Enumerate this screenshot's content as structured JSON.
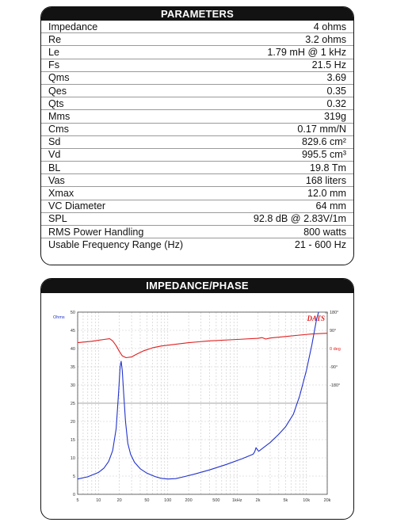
{
  "parameters": {
    "title": "PARAMETERS",
    "rows": [
      {
        "label": "Impedance",
        "value": "4 ohms"
      },
      {
        "label": "Re",
        "value": "3.2 ohms"
      },
      {
        "label": "Le",
        "value": "1.79 mH @ 1 kHz"
      },
      {
        "label": "Fs",
        "value": "21.5 Hz"
      },
      {
        "label": "Qms",
        "value": "3.69"
      },
      {
        "label": "Qes",
        "value": "0.35"
      },
      {
        "label": "Qts",
        "value": "0.32"
      },
      {
        "label": "Mms",
        "value": "319g"
      },
      {
        "label": "Cms",
        "value": "0.17 mm/N"
      },
      {
        "label": "Sd",
        "value": "829.6 cm²"
      },
      {
        "label": "Vd",
        "value": "995.5 cm³"
      },
      {
        "label": "BL",
        "value": "19.8 Tm"
      },
      {
        "label": "Vas",
        "value": "168 liters"
      },
      {
        "label": "Xmax",
        "value": "12.0 mm"
      },
      {
        "label": "VC Diameter",
        "value": "64 mm"
      },
      {
        "label": "SPL",
        "value": "92.8 dB @ 2.83V/1m"
      },
      {
        "label": "RMS Power Handling",
        "value": "800 watts"
      },
      {
        "label": "Usable Frequency Range (Hz)",
        "value": "21 - 600 Hz"
      }
    ]
  },
  "impedance_panel": {
    "title": "IMPEDANCE/PHASE",
    "watermark": "DATS",
    "watermark_sup": "V3",
    "ohms_label": "Ohms",
    "zero_deg_label": "0 deg"
  },
  "chart_data": {
    "type": "line",
    "x_scale": "log",
    "xlim": [
      5,
      20000
    ],
    "x_ticks": [
      "5",
      "10",
      "20",
      "50",
      "100",
      "200",
      "500",
      "1kHz",
      "2k",
      "5k",
      "10k",
      "20k"
    ],
    "x_tick_values": [
      5,
      10,
      20,
      50,
      100,
      200,
      500,
      1000,
      2000,
      5000,
      10000,
      20000
    ],
    "ylim": [
      0,
      50
    ],
    "y_ticks": [
      0,
      5,
      10,
      15,
      20,
      25,
      30,
      35,
      40,
      45,
      50
    ],
    "right_ticks": [
      {
        "label": "180°",
        "ohms": 50
      },
      {
        "label": "90°",
        "ohms": 45
      },
      {
        "label": "-90°",
        "ohms": 35
      },
      {
        "label": "-180°",
        "ohms": 30
      }
    ],
    "colors": {
      "impedance": "#2233cc",
      "phase": "#e02020"
    },
    "series": [
      {
        "kind": "impedance",
        "points": [
          [
            5,
            4.2
          ],
          [
            7,
            4.8
          ],
          [
            10,
            6
          ],
          [
            12,
            7.2
          ],
          [
            14,
            9
          ],
          [
            16,
            12
          ],
          [
            18,
            18
          ],
          [
            19.5,
            28
          ],
          [
            20.5,
            35
          ],
          [
            21.2,
            36.5
          ],
          [
            22,
            34
          ],
          [
            23,
            28
          ],
          [
            24.5,
            20
          ],
          [
            26.5,
            14
          ],
          [
            29,
            11
          ],
          [
            33,
            8.8
          ],
          [
            40,
            7
          ],
          [
            50,
            5.8
          ],
          [
            65,
            4.9
          ],
          [
            80,
            4.4
          ],
          [
            100,
            4.2
          ],
          [
            130,
            4.3
          ],
          [
            170,
            4.8
          ],
          [
            250,
            5.6
          ],
          [
            400,
            6.7
          ],
          [
            700,
            8.2
          ],
          [
            1200,
            9.8
          ],
          [
            1700,
            11
          ],
          [
            1800,
            11.7
          ],
          [
            1880,
            12.8
          ],
          [
            1950,
            12.3
          ],
          [
            2050,
            11.8
          ],
          [
            2400,
            12.8
          ],
          [
            3000,
            14.2
          ],
          [
            4000,
            16.5
          ],
          [
            5000,
            18.5
          ],
          [
            6500,
            22
          ],
          [
            8000,
            27
          ],
          [
            10000,
            34
          ],
          [
            12000,
            41
          ],
          [
            14000,
            48
          ],
          [
            15000,
            51
          ]
        ]
      },
      {
        "kind": "phase",
        "points": [
          [
            5,
            41.6
          ],
          [
            8,
            42
          ],
          [
            12,
            42.5
          ],
          [
            14.5,
            42.7
          ],
          [
            16,
            42.1
          ],
          [
            18,
            40.8
          ],
          [
            20,
            39.2
          ],
          [
            22,
            38
          ],
          [
            25,
            37.5
          ],
          [
            30,
            37.7
          ],
          [
            35,
            38.4
          ],
          [
            45,
            39.4
          ],
          [
            60,
            40.2
          ],
          [
            80,
            40.7
          ],
          [
            120,
            41.1
          ],
          [
            200,
            41.6
          ],
          [
            400,
            42.1
          ],
          [
            1000,
            42.5
          ],
          [
            2000,
            42.8
          ],
          [
            2300,
            43
          ],
          [
            2600,
            42.6
          ],
          [
            3000,
            42.9
          ],
          [
            5000,
            43.3
          ],
          [
            8000,
            43.7
          ],
          [
            12000,
            44
          ],
          [
            20000,
            44.2
          ]
        ]
      }
    ]
  }
}
